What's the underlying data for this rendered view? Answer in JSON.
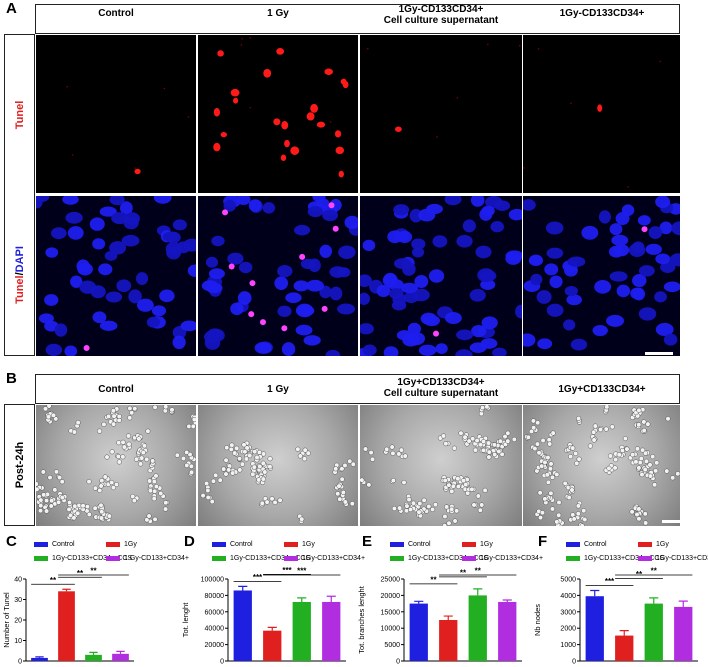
{
  "panels": {
    "A": {
      "label": "A",
      "conditions": [
        "Control",
        "1 Gy",
        "1Gy-CD133CD34+\nCell culture supernatant",
        "1Gy-CD133CD34+"
      ],
      "row_labels": {
        "tunel_only": "Tunel",
        "merge_red": "Tunel",
        "merge_sep": "/",
        "merge_blue": "DAPI"
      }
    },
    "B": {
      "label": "B",
      "conditions": [
        "Control",
        "1 Gy",
        "1Gy+CD133CD34+\nCell culture supernatant",
        "1Gy+CD133CD34+"
      ],
      "row_label": "Post-24h"
    }
  },
  "colors": {
    "control": "#1f1fe0",
    "gy": "#e0201f",
    "ccs": "#22b022",
    "cells": "#b12ee0"
  },
  "chart_data": [
    {
      "panel": "C",
      "type": "bar",
      "legend": [
        "Control",
        "1Gy",
        "1Gy-CD133+CD34+-CCS",
        "1 Gy-CD133+CD34+"
      ],
      "categories": [
        "Control",
        "1Gy",
        "1Gy-CD133+CD34+-CCS",
        "1 Gy-CD133+CD34+"
      ],
      "values": [
        1.5,
        34,
        3,
        3.5
      ],
      "errors": [
        0.5,
        1,
        1.2,
        1.2
      ],
      "ylabel": "Number of Tunel",
      "ylim": [
        0,
        40
      ],
      "yticks": [
        0,
        10,
        20,
        30,
        40
      ],
      "significance": [
        {
          "from": 0,
          "to": 1,
          "label": "**"
        },
        {
          "from": 1,
          "to": 2,
          "label": "**"
        },
        {
          "from": 1,
          "to": 3,
          "label": "**"
        }
      ]
    },
    {
      "panel": "D",
      "type": "bar",
      "legend": [
        "Control",
        "1Gy",
        "1Gy-CD133+CD34+-CCS",
        "1Gy-CD133+CD34+"
      ],
      "categories": [
        "Control",
        "1Gy",
        "1Gy-CD133+CD34+-CCS",
        "1Gy-CD133+CD34+"
      ],
      "values": [
        86000,
        37000,
        72000,
        72000
      ],
      "errors": [
        5000,
        4000,
        5000,
        7000
      ],
      "ylabel": "Tot. lenght",
      "ylim": [
        0,
        100000
      ],
      "yticks": [
        0,
        20000,
        40000,
        60000,
        80000,
        100000
      ],
      "significance": [
        {
          "from": 0,
          "to": 1,
          "label": "***"
        },
        {
          "from": 1,
          "to": 2,
          "label": "***"
        },
        {
          "from": 1,
          "to": 3,
          "label": "***"
        }
      ]
    },
    {
      "panel": "E",
      "type": "bar",
      "legend": [
        "Control",
        "1Gy",
        "1Gy-CD133+CD34+-CCS",
        "1Gy-CD133+CD34+"
      ],
      "categories": [
        "Control",
        "1Gy",
        "1Gy-CD133+CD34+-CCS",
        "1Gy-CD133+CD34+"
      ],
      "values": [
        17500,
        12500,
        20000,
        18000
      ],
      "errors": [
        700,
        1200,
        2000,
        600
      ],
      "ylabel": "Tot. branches lenght",
      "ylim": [
        0,
        25000
      ],
      "yticks": [
        0,
        5000,
        10000,
        15000,
        20000,
        25000
      ],
      "significance": [
        {
          "from": 0,
          "to": 1,
          "label": "**"
        },
        {
          "from": 1,
          "to": 2,
          "label": "**"
        },
        {
          "from": 1,
          "to": 3,
          "label": "**"
        }
      ]
    },
    {
      "panel": "F",
      "type": "bar",
      "legend": [
        "Control",
        "1Gy",
        "1Gy-CD133+CD34+-CCS",
        "1Gy-CD133+CD34+"
      ],
      "categories": [
        "Control",
        "1Gy",
        "1Gy-CD133+CD34+-CCS",
        "1Gy-CD133+CD34+"
      ],
      "values": [
        3950,
        1550,
        3500,
        3300
      ],
      "errors": [
        350,
        300,
        350,
        350
      ],
      "ylabel": "Nb nodes",
      "ylim": [
        0,
        5000
      ],
      "yticks": [
        0,
        1000,
        2000,
        3000,
        4000,
        5000
      ],
      "significance": [
        {
          "from": 0,
          "to": 1,
          "label": "***"
        },
        {
          "from": 1,
          "to": 2,
          "label": "**"
        },
        {
          "from": 1,
          "to": 3,
          "label": "**"
        }
      ]
    }
  ]
}
